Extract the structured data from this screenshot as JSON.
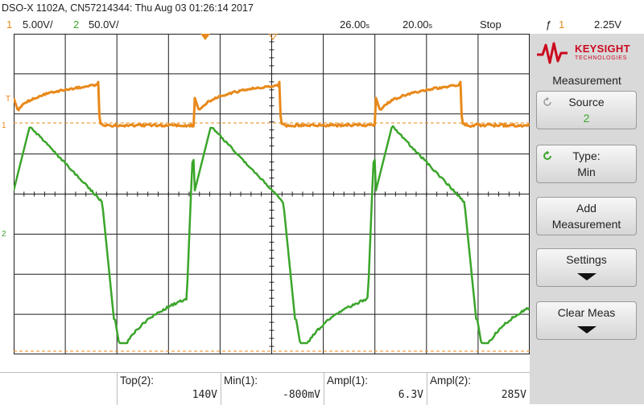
{
  "header": {
    "title": "DSO-X 1102A, CN57214344: Thu Aug 03 01:26:14 2017",
    "ch1_num": "1",
    "ch1_scale": "5.00V/",
    "ch2_num": "2",
    "ch2_scale": "50.0V/",
    "time_pos": "26.00",
    "time_pos_unit": "s",
    "time_scale": "20.00",
    "time_scale_unit": "s",
    "run_state": "Stop",
    "trigger_symbol": "ƒ",
    "trigger_ch": "1",
    "trigger_level": "2.25V"
  },
  "markers": {
    "ch1": "1",
    "ch2": "2",
    "trig": "T"
  },
  "colors": {
    "ch1": "#e8891a",
    "ch2": "#3aa52a",
    "grid": "#1e1e1e",
    "brand": "#cc0a1f"
  },
  "panel": {
    "brand_name": "KEYSIGHT",
    "brand_sub": "TECHNOLOGIES",
    "menu_title": "Measurement",
    "softkeys": [
      {
        "line1": "Source",
        "line2": "2"
      },
      {
        "line1": "Type:",
        "line2": "Min"
      },
      {
        "line1": "Add",
        "line2": "Measurement"
      },
      {
        "line1": "Settings",
        "line2": ""
      },
      {
        "line1": "Clear Meas",
        "line2": ""
      }
    ]
  },
  "measurements": [
    {
      "label": "Top(2):",
      "value": "140V"
    },
    {
      "label": "Min(1):",
      "value": "-800mV"
    },
    {
      "label": "Ampl(1):",
      "value": "6.3V"
    },
    {
      "label": "Ampl(2):",
      "value": "285V"
    }
  ]
}
